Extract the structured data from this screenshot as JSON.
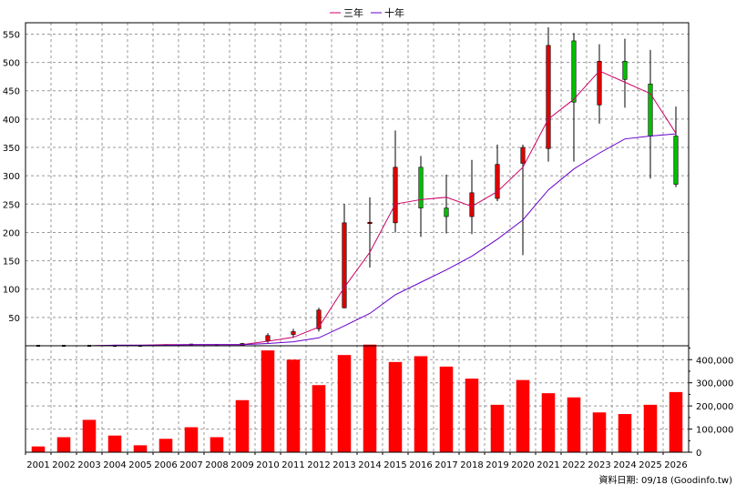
{
  "legend": {
    "items": [
      {
        "label": "三年",
        "color": "#cc0066"
      },
      {
        "label": "十年",
        "color": "#6600cc"
      }
    ]
  },
  "footer": {
    "note": "資料日期: 09/18  (Goodinfo.tw)"
  },
  "colors": {
    "up_candle": "#e00000",
    "down_candle": "#00c000",
    "wick": "#000000",
    "volume_bar": "#ff0000",
    "grid": "#999999"
  },
  "chart_data": [
    {
      "type": "candlestick",
      "title": "",
      "ylim": [
        0,
        570
      ],
      "y_ticks": [
        50,
        100,
        150,
        200,
        250,
        300,
        350,
        400,
        450,
        500,
        550
      ],
      "y_tick_labels": [
        "50",
        "100",
        "150",
        "200",
        "250",
        "300",
        "350",
        "400",
        "450",
        "500",
        "550"
      ],
      "grid": true,
      "legend_position": "top-center",
      "categories": [
        "2001",
        "2002",
        "2003",
        "2004",
        "2005",
        "2006",
        "2007",
        "2008",
        "2009",
        "2010",
        "2011",
        "2012",
        "2013",
        "2014",
        "2015",
        "2016",
        "2017",
        "2018",
        "2019",
        "2020",
        "2021",
        "2022",
        "2023",
        "2024",
        "2025",
        "2026"
      ],
      "ohlc": [
        {
          "open": 0,
          "high": 0,
          "low": 0,
          "close": 0
        },
        {
          "open": 0,
          "high": 0,
          "low": 0,
          "close": 0
        },
        {
          "open": 0,
          "high": 0,
          "low": 0,
          "close": 0
        },
        {
          "open": 0,
          "high": 0,
          "low": 0,
          "close": 0
        },
        {
          "open": 0,
          "high": 0,
          "low": 0,
          "close": 0
        },
        {
          "open": 1,
          "high": 1,
          "low": 1,
          "close": 1
        },
        {
          "open": 2,
          "high": 2,
          "low": 2,
          "close": 2
        },
        {
          "open": 1,
          "high": 1,
          "low": 1,
          "close": 1
        },
        {
          "open": 1,
          "high": 5,
          "low": 1,
          "close": 4
        },
        {
          "open": 9,
          "high": 22,
          "low": 5,
          "close": 18
        },
        {
          "open": 20,
          "high": 30,
          "low": 14,
          "close": 25
        },
        {
          "open": 30,
          "high": 67,
          "low": 25,
          "close": 63
        },
        {
          "open": 67,
          "high": 250,
          "low": 66,
          "close": 217
        },
        {
          "open": 217,
          "high": 262,
          "low": 138,
          "close": 218
        },
        {
          "open": 217,
          "high": 380,
          "low": 200,
          "close": 315
        },
        {
          "open": 315,
          "high": 335,
          "low": 192,
          "close": 243
        },
        {
          "open": 243,
          "high": 302,
          "low": 198,
          "close": 228
        },
        {
          "open": 228,
          "high": 328,
          "low": 197,
          "close": 270
        },
        {
          "open": 260,
          "high": 355,
          "low": 255,
          "close": 320
        },
        {
          "open": 322,
          "high": 355,
          "low": 160,
          "close": 350
        },
        {
          "open": 348,
          "high": 562,
          "low": 325,
          "close": 530
        },
        {
          "open": 538,
          "high": 552,
          "low": 325,
          "close": 430
        },
        {
          "open": 425,
          "high": 532,
          "low": 392,
          "close": 502
        },
        {
          "open": 502,
          "high": 542,
          "low": 420,
          "close": 470
        },
        {
          "open": 462,
          "high": 522,
          "low": 295,
          "close": 370
        },
        {
          "open": 370,
          "high": 422,
          "low": 280,
          "close": 285
        }
      ],
      "series": [
        {
          "name": "三年",
          "values": [
            null,
            null,
            0,
            1,
            1,
            2,
            2,
            2,
            2,
            8,
            15,
            33,
            103,
            165,
            250,
            258,
            262,
            246,
            272,
            315,
            400,
            435,
            485,
            465,
            445,
            375
          ]
        },
        {
          "name": "十年",
          "values": [
            null,
            null,
            0,
            1,
            1,
            1,
            2,
            2,
            2,
            4,
            7,
            14,
            35,
            57,
            90,
            112,
            134,
            158,
            188,
            222,
            275,
            312,
            340,
            365,
            370,
            374
          ]
        }
      ]
    },
    {
      "type": "bar",
      "title": "",
      "ylim": [
        0,
        460000
      ],
      "y_ticks": [
        0,
        100000,
        200000,
        300000,
        400000
      ],
      "y_tick_labels": [
        "0",
        "100,000",
        "200,000",
        "300,000",
        "400,000"
      ],
      "grid": true,
      "categories": [
        "2001",
        "2002",
        "2003",
        "2004",
        "2005",
        "2006",
        "2007",
        "2008",
        "2009",
        "2010",
        "2011",
        "2012",
        "2013",
        "2014",
        "2015",
        "2016",
        "2017",
        "2018",
        "2019",
        "2020",
        "2021",
        "2022",
        "2023",
        "2024",
        "2025",
        "2026"
      ],
      "values": [
        25000,
        65000,
        140000,
        72000,
        30000,
        58000,
        108000,
        65000,
        225000,
        440000,
        400000,
        290000,
        420000,
        465000,
        390000,
        415000,
        370000,
        318000,
        205000,
        312000,
        255000,
        237000,
        172000,
        165000,
        205000,
        260000
      ]
    }
  ]
}
